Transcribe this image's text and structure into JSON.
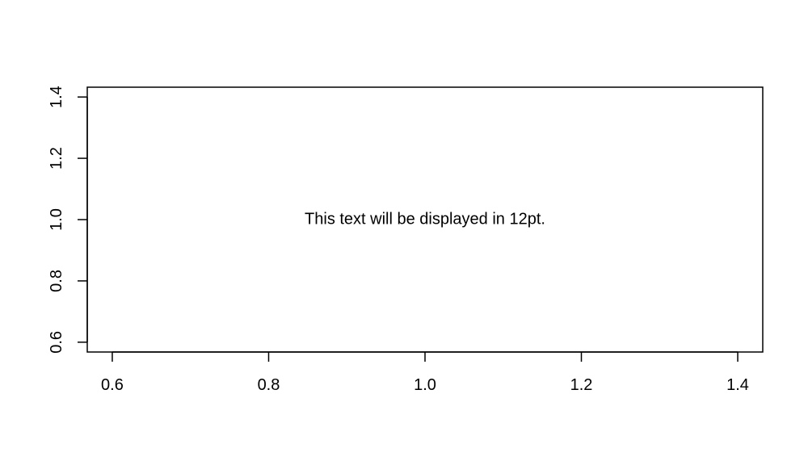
{
  "chart_data": {
    "type": "scatter",
    "title": "",
    "xlabel": "",
    "ylabel": "",
    "xlim": [
      0.6,
      1.4
    ],
    "ylim": [
      0.6,
      1.4
    ],
    "x_ticks": [
      0.6,
      0.8,
      1.0,
      1.2,
      1.4
    ],
    "x_tick_labels": [
      "0.6",
      "0.8",
      "1.0",
      "1.2",
      "1.4"
    ],
    "y_ticks": [
      0.6,
      0.8,
      1.0,
      1.2,
      1.4
    ],
    "y_tick_labels": [
      "0.6",
      "0.8",
      "1.0",
      "1.2",
      "1.4"
    ],
    "grid": false,
    "series": [],
    "annotations": [
      {
        "x": 1.0,
        "y": 1.0,
        "text": "This text will be displayed in 12pt."
      }
    ]
  }
}
